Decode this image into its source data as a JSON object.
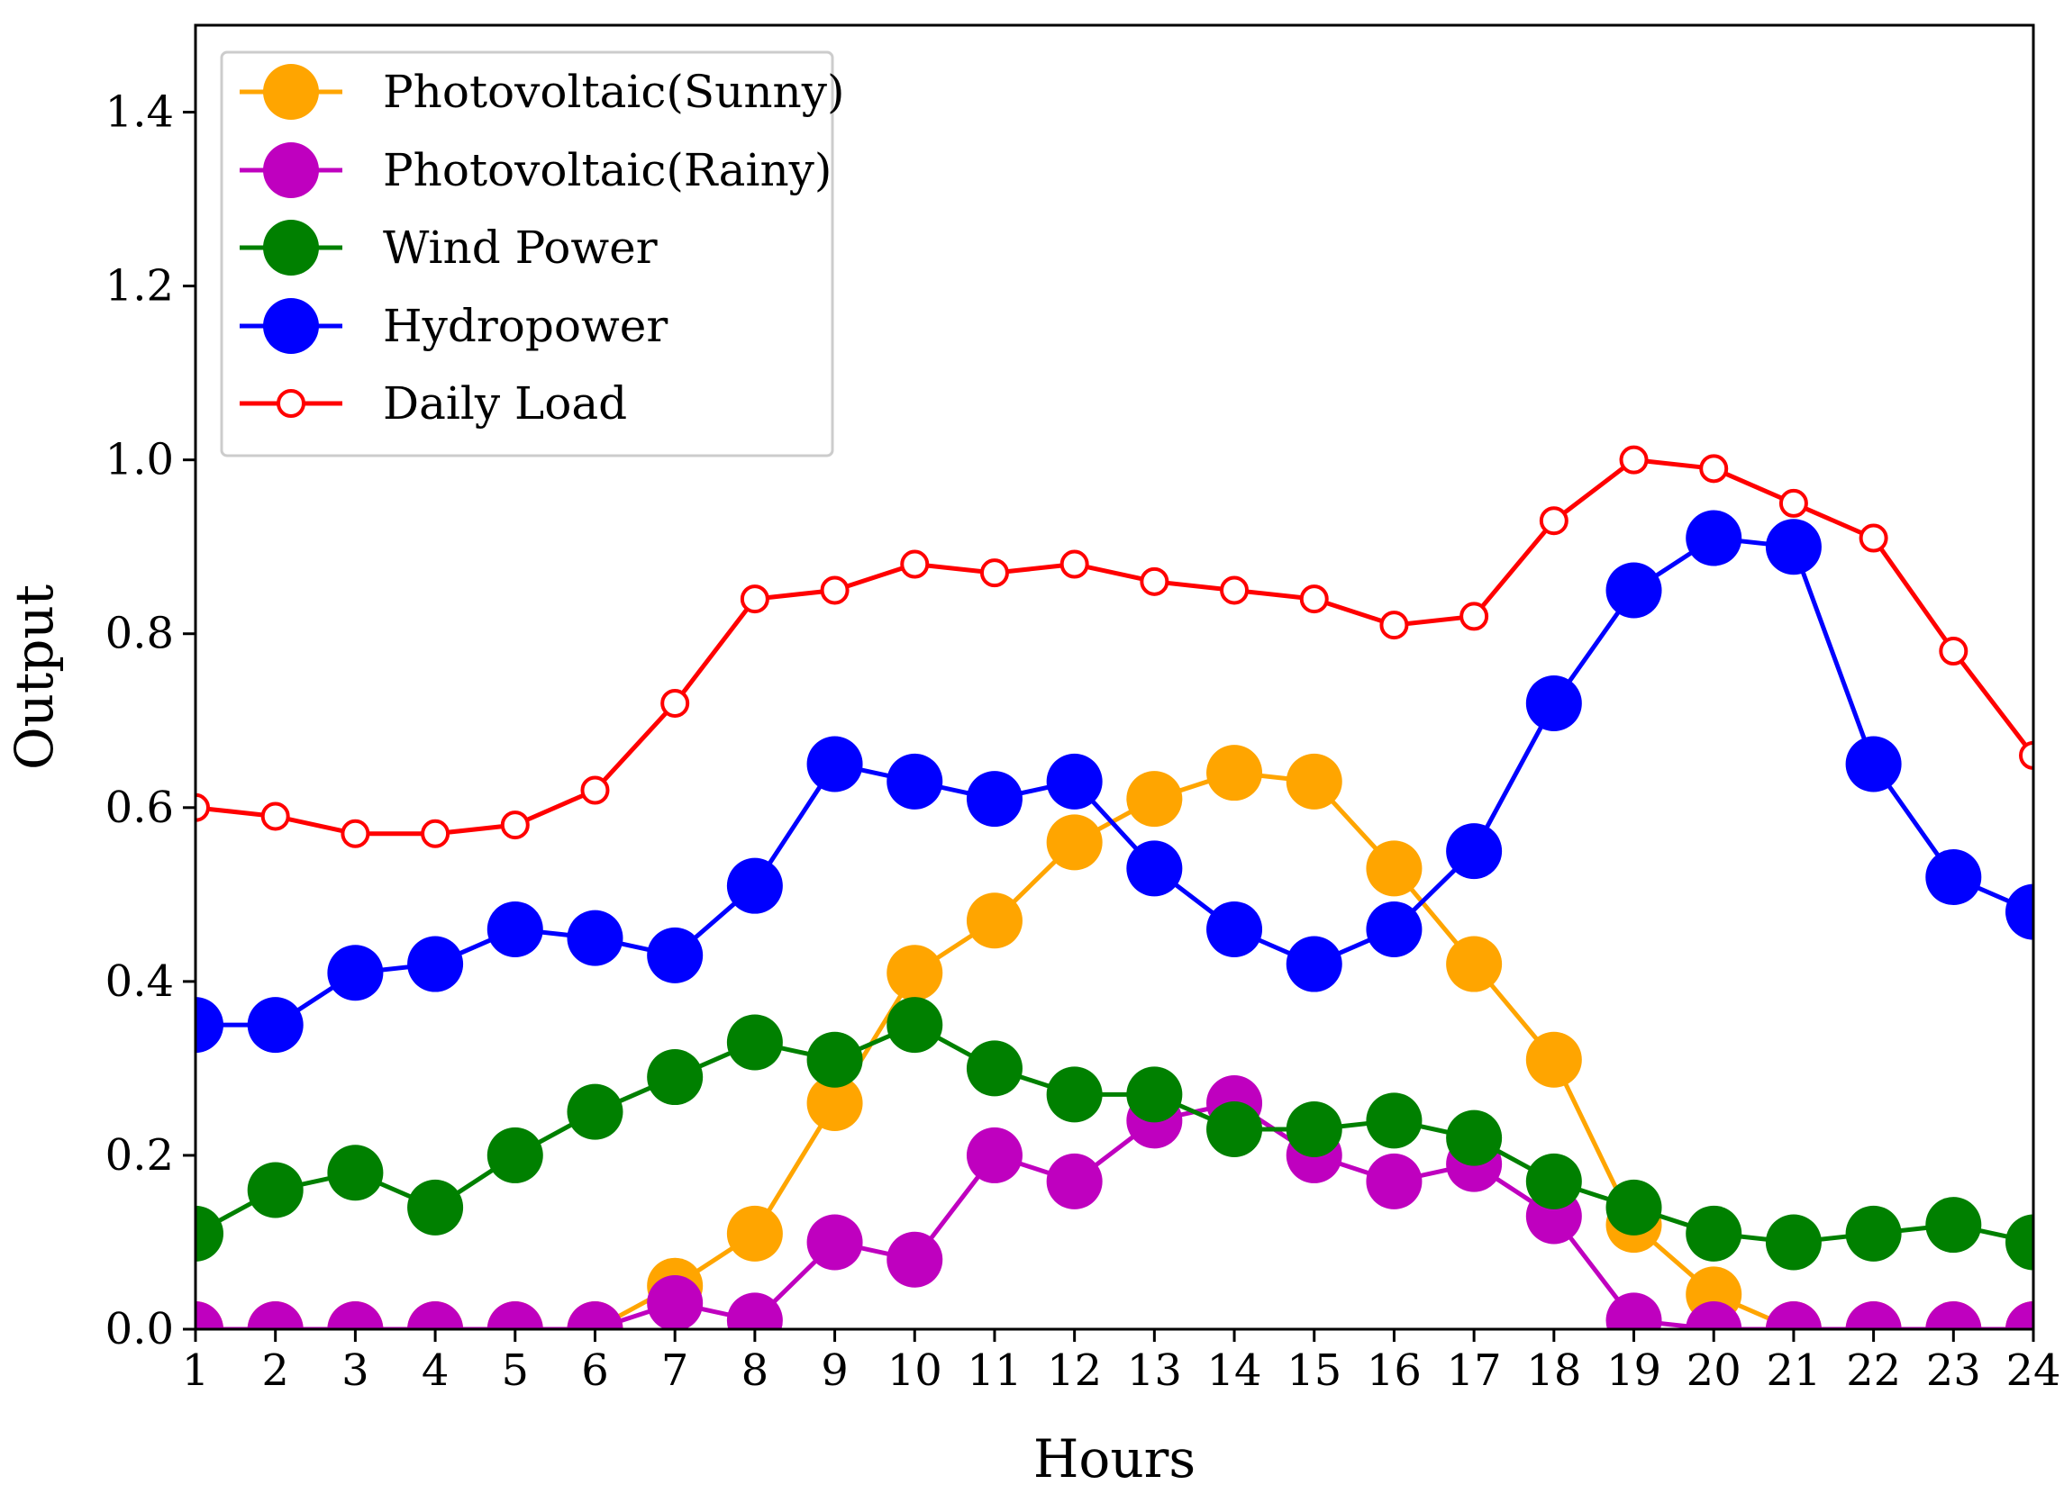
{
  "chart_data": {
    "type": "line",
    "title": "",
    "xlabel": "Hours",
    "ylabel": "Output",
    "xlim": [
      1,
      24
    ],
    "ylim": [
      0,
      1.5
    ],
    "x": [
      1,
      2,
      3,
      4,
      5,
      6,
      7,
      8,
      9,
      10,
      11,
      12,
      13,
      14,
      15,
      16,
      17,
      18,
      19,
      20,
      21,
      22,
      23,
      24
    ],
    "xticks": [
      "1",
      "2",
      "3",
      "4",
      "5",
      "6",
      "7",
      "8",
      "9",
      "10",
      "11",
      "12",
      "13",
      "14",
      "15",
      "16",
      "17",
      "18",
      "19",
      "20",
      "21",
      "22",
      "23",
      "24"
    ],
    "yticks": [
      0.0,
      0.2,
      0.4,
      0.6,
      0.8,
      1.0,
      1.2,
      1.4
    ],
    "ytick_labels": [
      "0.0",
      "0.2",
      "0.4",
      "0.6",
      "0.8",
      "1.0",
      "1.2",
      "1.4"
    ],
    "grid": false,
    "legend_position": "top-left",
    "series": [
      {
        "name": "Photovoltaic(Sunny)",
        "color": "#FFA500",
        "marker": "filled-circle",
        "values": [
          0,
          0,
          0,
          0,
          0,
          0,
          0.05,
          0.11,
          0.26,
          0.41,
          0.47,
          0.56,
          0.61,
          0.64,
          0.63,
          0.53,
          0.42,
          0.31,
          0.12,
          0.04,
          0,
          0,
          0,
          0
        ]
      },
      {
        "name": "Photovoltaic(Rainy)",
        "color": "#BF00BF",
        "marker": "filled-circle",
        "values": [
          0,
          0,
          0,
          0,
          0,
          0,
          0.03,
          0.01,
          0.1,
          0.08,
          0.2,
          0.17,
          0.24,
          0.26,
          0.2,
          0.17,
          0.19,
          0.13,
          0.01,
          0,
          0,
          0,
          0,
          0
        ]
      },
      {
        "name": "Wind Power",
        "color": "#008000",
        "marker": "filled-circle",
        "values": [
          0.11,
          0.16,
          0.18,
          0.14,
          0.2,
          0.25,
          0.29,
          0.33,
          0.31,
          0.35,
          0.3,
          0.27,
          0.27,
          0.23,
          0.23,
          0.24,
          0.22,
          0.17,
          0.14,
          0.11,
          0.1,
          0.11,
          0.12,
          0.1
        ]
      },
      {
        "name": "Hydropower",
        "color": "#0000FF",
        "marker": "filled-circle",
        "values": [
          0.35,
          0.35,
          0.41,
          0.42,
          0.46,
          0.45,
          0.43,
          0.51,
          0.65,
          0.63,
          0.61,
          0.63,
          0.53,
          0.46,
          0.42,
          0.46,
          0.55,
          0.72,
          0.85,
          0.91,
          0.9,
          0.65,
          0.52,
          0.48
        ]
      },
      {
        "name": "Daily Load",
        "color": "#FF0000",
        "marker": "open-circle",
        "values": [
          0.6,
          0.59,
          0.57,
          0.57,
          0.58,
          0.62,
          0.72,
          0.84,
          0.85,
          0.88,
          0.87,
          0.88,
          0.86,
          0.85,
          0.84,
          0.81,
          0.82,
          0.93,
          1.0,
          0.99,
          0.95,
          0.91,
          0.78,
          0.66
        ]
      }
    ]
  }
}
